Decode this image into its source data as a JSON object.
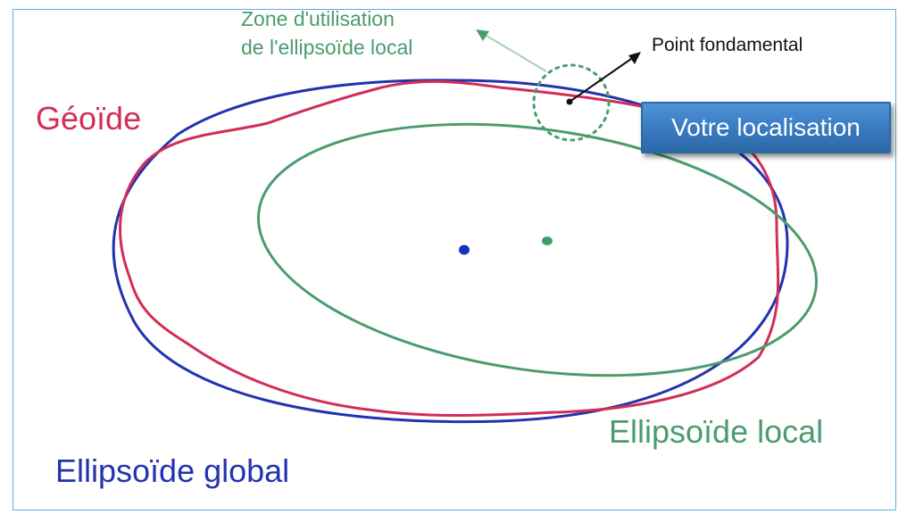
{
  "labels": {
    "zone_line1": "Zone d'utilisation",
    "zone_line2": "de l'ellipsoïde local",
    "point_fondamental": "Point fondamental",
    "geoide": "Géoïde",
    "ellipsoide_local": "Ellipsoïde local",
    "ellipsoide_global": "Ellipsoïde global"
  },
  "location_button": {
    "label": "Votre localisation"
  },
  "colors": {
    "geoide": "#d22d55",
    "ellipsoide_global": "#2233b0",
    "ellipsoide_local": "#4a9c6e",
    "point_fondamental": "#111111",
    "frame_border": "#5aaee0",
    "button_fill": "#3b7ec4"
  }
}
